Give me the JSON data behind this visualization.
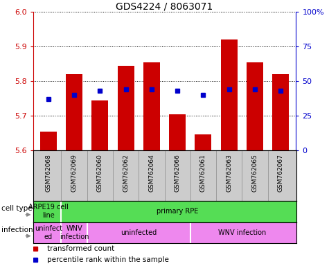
{
  "title": "GDS4224 / 8063071",
  "samples": [
    "GSM762068",
    "GSM762069",
    "GSM762060",
    "GSM762062",
    "GSM762064",
    "GSM762066",
    "GSM762061",
    "GSM762063",
    "GSM762065",
    "GSM762067"
  ],
  "bar_values": [
    5.655,
    5.82,
    5.745,
    5.845,
    5.855,
    5.705,
    5.645,
    5.92,
    5.855,
    5.82
  ],
  "bar_baseline": 5.6,
  "percentile_values": [
    37,
    40,
    43,
    44,
    44,
    43,
    40,
    44,
    44,
    43
  ],
  "ylim": [
    5.6,
    6.0
  ],
  "yticks": [
    5.6,
    5.7,
    5.8,
    5.9,
    6.0
  ],
  "y2lim": [
    0,
    100
  ],
  "y2ticks": [
    0,
    25,
    50,
    75,
    100
  ],
  "y2ticklabels": [
    "0",
    "25",
    "50",
    "75",
    "100%"
  ],
  "bar_color": "#cc0000",
  "dot_color": "#0000cc",
  "cell_type_green": "#55dd55",
  "infection_pink": "#ee88ee",
  "xtick_bg": "#cccccc",
  "legend_items": [
    {
      "label": "transformed count",
      "color": "#cc0000"
    },
    {
      "label": "percentile rank within the sample",
      "color": "#0000cc"
    }
  ],
  "bg_color": "#ffffff",
  "tick_label_color_left": "#cc0000",
  "tick_label_color_right": "#0000cc",
  "cell_type_spans": [
    {
      "label": "ARPE19 cell\nline",
      "xstart": -0.5,
      "xend": 0.5
    },
    {
      "label": "primary RPE",
      "xstart": 0.5,
      "xend": 9.5
    }
  ],
  "infection_spans": [
    {
      "label": "uninfect\ned",
      "xstart": -0.5,
      "xend": 0.5
    },
    {
      "label": "WNV\ninfection",
      "xstart": 0.5,
      "xend": 1.5
    },
    {
      "label": "uninfected",
      "xstart": 1.5,
      "xend": 5.5
    },
    {
      "label": "WNV infection",
      "xstart": 5.5,
      "xend": 9.5
    }
  ]
}
